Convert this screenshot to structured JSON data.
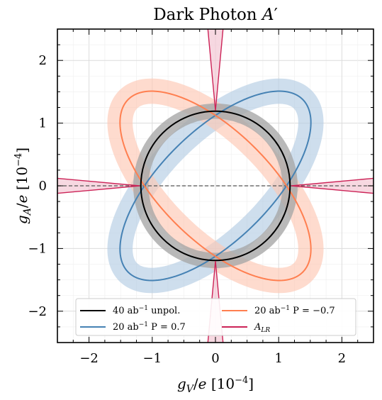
{
  "chart_data": {
    "type": "line",
    "title": "Dark Photon A′",
    "xlabel": "g_V/e [10^-4]",
    "ylabel": "g_A/e [10^-4]",
    "xlim": [
      -2.5,
      2.5
    ],
    "ylim": [
      -2.5,
      2.5
    ],
    "xticks": [
      -2,
      -1,
      0,
      1,
      2
    ],
    "yticks": [
      -2,
      -1,
      0,
      1,
      2
    ],
    "xticklabels": [
      "−2",
      "−1",
      "0",
      "1",
      "2"
    ],
    "yticklabels": [
      "−2",
      "−1",
      "0",
      "1",
      "2"
    ],
    "grid": true,
    "legend_position": "bottom",
    "series": [
      {
        "name": "40 ab⁻¹ unpol.",
        "color": "#000000",
        "band_color": "#a8a8a8",
        "shape": "circle",
        "radius": 1.18,
        "band_width": 0.12
      },
      {
        "name": "20 ab⁻¹ P = 0.7",
        "color": "#4682b4",
        "band_color": "#b3cde3",
        "shape": "ellipse",
        "semi_major": 1.95,
        "semi_minor": 0.87,
        "angle_deg": 45,
        "band_width": 0.2
      },
      {
        "name": "20 ab⁻¹ P = −0.7",
        "color": "#ff7f50",
        "band_color": "#fdc8b4",
        "shape": "ellipse",
        "semi_major": 1.95,
        "semi_minor": 0.87,
        "angle_deg": -45,
        "band_width": 0.2
      },
      {
        "name": "A_LR",
        "color": "#cc2357",
        "band_color": "#f3c8d4",
        "shape": "hyperbolic-cross",
        "ratio_curve": [
          [
            1.2,
            0.0
          ],
          [
            2.5,
            0.12
          ]
        ],
        "ratio_curve_vertical": [
          [
            0.0,
            1.2
          ],
          [
            0.12,
            2.5
          ]
        ]
      }
    ],
    "reference_line": {
      "y": 0,
      "style": "dashed",
      "color": "#555555"
    },
    "legend": [
      {
        "label_main": "40 ab",
        "label_sup": "−1",
        "label_rest": " unpol.",
        "color": "#000000"
      },
      {
        "label_main": "20 ab",
        "label_sup": "−1",
        "label_rest": " P = −0.7",
        "color": "#ff7f50"
      },
      {
        "label_main": "20 ab",
        "label_sup": "−1",
        "label_rest": " P = 0.7",
        "color": "#4682b4"
      },
      {
        "label_main": "A",
        "label_sub": "LR",
        "label_rest": "",
        "color": "#cc2357"
      }
    ]
  }
}
